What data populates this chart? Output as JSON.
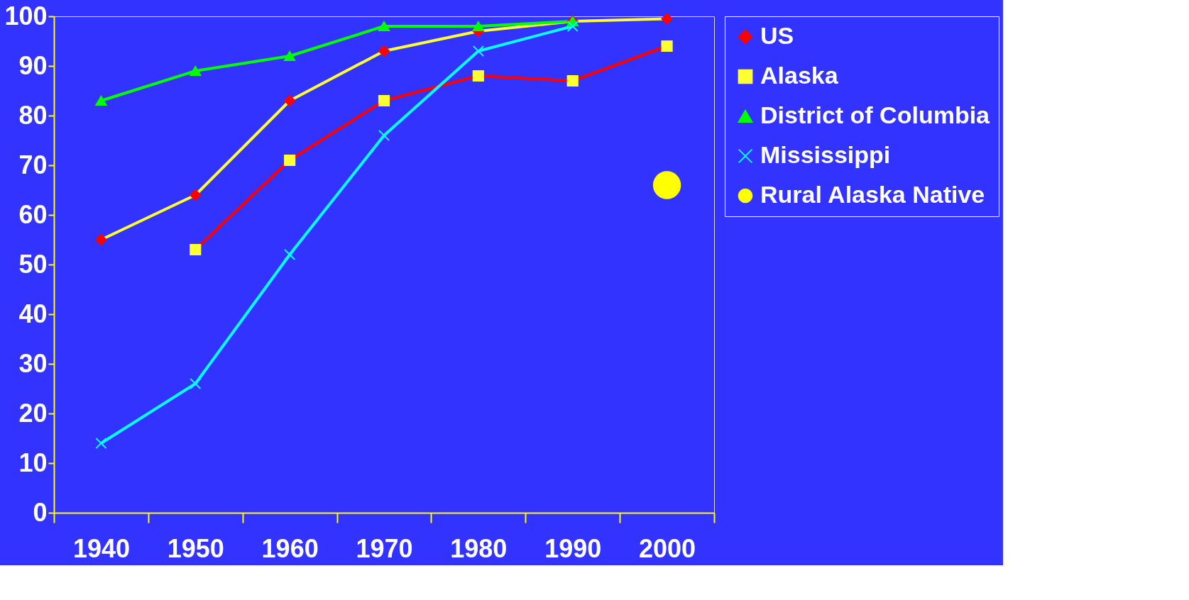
{
  "chart_data": {
    "type": "line",
    "categories": [
      "1940",
      "1950",
      "1960",
      "1970",
      "1980",
      "1990",
      "2000"
    ],
    "ylim": [
      0,
      100
    ],
    "yticks": [
      0,
      10,
      20,
      30,
      40,
      50,
      60,
      70,
      80,
      90,
      100
    ],
    "grid": false,
    "legend": "right",
    "series": [
      {
        "name": "US",
        "color": "#ffff33",
        "marker": "diamond",
        "values": [
          55,
          64,
          83,
          93,
          97,
          99,
          99.5
        ]
      },
      {
        "name": "Alaska",
        "color": "#ff0000",
        "marker": "square",
        "values": [
          null,
          53,
          71,
          83,
          88,
          87,
          94
        ]
      },
      {
        "name": "District of Columbia",
        "color": "#00ff00",
        "marker": "triangle",
        "values": [
          83,
          89,
          92,
          98,
          98,
          99,
          null
        ]
      },
      {
        "name": "Mississippi",
        "color": "#00ffff",
        "marker": "cross",
        "values": [
          14,
          26,
          52,
          76,
          93,
          98,
          null
        ]
      },
      {
        "name": "Rural Alaska Native",
        "color": "#ffff00",
        "type": "scatter",
        "marker": "circle",
        "values": [
          null,
          null,
          null,
          null,
          null,
          null,
          66
        ]
      }
    ]
  }
}
